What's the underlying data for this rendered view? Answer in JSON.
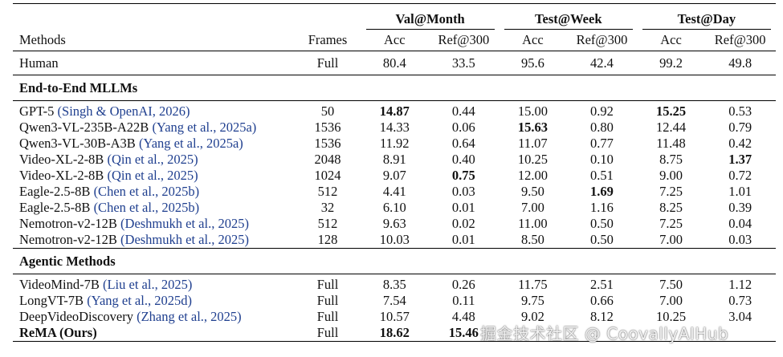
{
  "headers": {
    "methods": "Methods",
    "frames": "Frames",
    "groups": [
      "Val@Month",
      "Test@Week",
      "Test@Day"
    ],
    "acc": "Acc",
    "ref": "Ref@300"
  },
  "human": {
    "name": "Human",
    "frames": "Full",
    "v": [
      "80.4",
      "33.5",
      "95.6",
      "42.4",
      "99.2",
      "49.8"
    ]
  },
  "sections": {
    "e2e": "End-to-End MLLMs",
    "agentic": "Agentic Methods"
  },
  "e2e_rows": [
    {
      "name": "GPT-5",
      "cite": "(Singh & OpenAI, 2026)",
      "frames": "50",
      "v": [
        "14.87",
        "0.44",
        "15.00",
        "0.92",
        "15.25",
        "0.53"
      ]
    },
    {
      "name": "Qwen3-VL-235B-A22B",
      "cite": "(Yang et al., 2025a)",
      "frames": "1536",
      "v": [
        "14.33",
        "0.06",
        "15.63",
        "0.80",
        "12.44",
        "0.79"
      ]
    },
    {
      "name": "Qwen3-VL-30B-A3B",
      "cite": "(Yang et al., 2025a)",
      "frames": "1536",
      "v": [
        "11.92",
        "0.64",
        "11.07",
        "0.77",
        "11.48",
        "0.42"
      ]
    },
    {
      "name": "Video-XL-2-8B",
      "cite": "(Qin et al., 2025)",
      "frames": "2048",
      "v": [
        "8.91",
        "0.40",
        "10.25",
        "0.10",
        "8.75",
        "1.37"
      ]
    },
    {
      "name": "Video-XL-2-8B",
      "cite": "(Qin et al., 2025)",
      "frames": "1024",
      "v": [
        "9.07",
        "0.75",
        "12.00",
        "0.51",
        "9.00",
        "0.72"
      ]
    },
    {
      "name": "Eagle-2.5-8B",
      "cite": "(Chen et al., 2025b)",
      "frames": "512",
      "v": [
        "4.41",
        "0.03",
        "9.50",
        "1.69",
        "7.25",
        "1.01"
      ]
    },
    {
      "name": "Eagle-2.5-8B",
      "cite": "(Chen et al., 2025b)",
      "frames": "32",
      "v": [
        "6.10",
        "0.01",
        "7.00",
        "1.16",
        "8.25",
        "0.39"
      ]
    },
    {
      "name": "Nemotron-v2-12B",
      "cite": "(Deshmukh et al., 2025)",
      "frames": "512",
      "v": [
        "9.63",
        "0.02",
        "11.00",
        "0.50",
        "7.25",
        "0.04"
      ]
    },
    {
      "name": "Nemotron-v2-12B",
      "cite": "(Deshmukh et al., 2025)",
      "frames": "128",
      "v": [
        "10.03",
        "0.01",
        "8.50",
        "0.50",
        "7.00",
        "0.03"
      ]
    }
  ],
  "agentic_rows": [
    {
      "name": "VideoMind-7B",
      "cite": "(Liu et al., 2025)",
      "frames": "Full",
      "v": [
        "8.35",
        "0.26",
        "11.75",
        "2.51",
        "7.50",
        "1.12"
      ]
    },
    {
      "name": "LongVT-7B",
      "cite": "(Yang et al., 2025d)",
      "frames": "Full",
      "v": [
        "7.54",
        "0.11",
        "9.75",
        "0.66",
        "7.00",
        "0.73"
      ]
    },
    {
      "name": "DeepVideoDiscovery",
      "cite": "(Zhang et al., 2025)",
      "frames": "Full",
      "v": [
        "10.57",
        "4.48",
        "9.02",
        "8.12",
        "10.25",
        "3.04"
      ]
    },
    {
      "name": "ReMA (Ours)",
      "cite": "",
      "frames": "Full",
      "v": [
        "18.62",
        "15.46",
        "",
        "",
        "",
        ""
      ]
    }
  ],
  "watermark": "掘金技术社区 @ CoovallyAIHub"
}
